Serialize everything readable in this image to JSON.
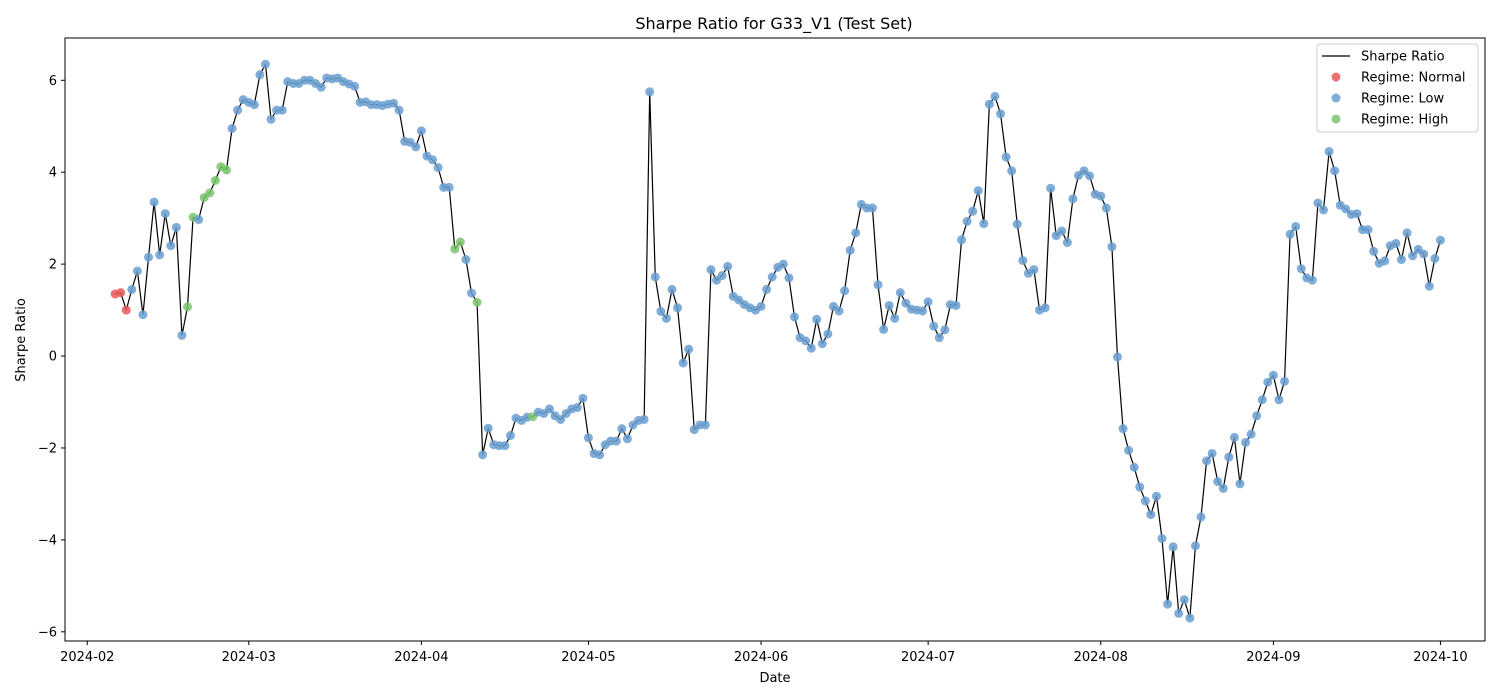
{
  "chart_data": {
    "type": "line",
    "title": "Sharpe Ratio  for G33_V1 (Test Set)",
    "xlabel": "Date",
    "ylabel": "Sharpe Ratio",
    "x_range": [
      "2024-01-28",
      "2024-10-09"
    ],
    "ylim": [
      -6.2,
      6.92
    ],
    "x_ticks": [
      "2024-02-01",
      "2024-03-01",
      "2024-04-01",
      "2024-05-01",
      "2024-06-01",
      "2024-07-01",
      "2024-08-01",
      "2024-09-01",
      "2024-10-01"
    ],
    "x_tick_labels": [
      "2024-02",
      "2024-03",
      "2024-04",
      "2024-05",
      "2024-06",
      "2024-07",
      "2024-08",
      "2024-09",
      "2024-10"
    ],
    "y_ticks": [
      -6,
      -4,
      -2,
      0,
      2,
      4,
      6
    ],
    "y_tick_labels": [
      "−6",
      "−4",
      "−2",
      "0",
      "2",
      "4",
      "6"
    ],
    "grid": false,
    "legend_position": "top-right",
    "line_series": {
      "name": "Sharpe Ratio",
      "color": "#000000"
    },
    "regimes": [
      {
        "name": "Regime: Normal",
        "color": "#e8595a"
      },
      {
        "name": "Regime: Low",
        "color": "#6a9fd0"
      },
      {
        "name": "Regime: High",
        "color": "#79c46c"
      }
    ],
    "regime_labels": [
      "N",
      "L",
      "H"
    ],
    "start_date": "2024-02-06",
    "values": [
      1.35,
      1.38,
      1.0,
      1.45,
      1.85,
      0.9,
      2.15,
      3.35,
      2.2,
      3.1,
      2.4,
      2.8,
      0.45,
      1.07,
      3.02,
      2.97,
      3.45,
      3.55,
      3.82,
      4.12,
      4.05,
      4.95,
      5.35,
      5.58,
      5.52,
      5.47,
      6.12,
      6.35,
      5.15,
      5.35,
      5.35,
      5.97,
      5.93,
      5.93,
      6.0,
      6.0,
      5.93,
      5.85,
      6.05,
      6.03,
      6.05,
      5.97,
      5.92,
      5.87,
      5.52,
      5.53,
      5.47,
      5.47,
      5.45,
      5.48,
      5.5,
      5.35,
      4.67,
      4.65,
      4.55,
      4.9,
      4.35,
      4.27,
      4.1,
      3.67,
      3.67,
      2.33,
      2.48,
      2.1,
      1.37,
      1.17,
      -2.15,
      -1.57,
      -1.93,
      -1.95,
      -1.95,
      -1.73,
      -1.35,
      -1.4,
      -1.33,
      -1.32,
      -1.22,
      -1.25,
      -1.15,
      -1.3,
      -1.38,
      -1.25,
      -1.15,
      -1.12,
      -0.92,
      -1.78,
      -2.12,
      -2.15,
      -1.93,
      -1.85,
      -1.85,
      -1.58,
      -1.8,
      -1.5,
      -1.4,
      -1.38,
      5.75,
      1.72,
      0.97,
      0.82,
      1.45,
      1.05,
      -0.15,
      0.15,
      -1.6,
      -1.5,
      -1.5,
      1.88,
      1.65,
      1.75,
      1.95,
      1.3,
      1.22,
      1.12,
      1.05,
      1.0,
      1.08,
      1.45,
      1.72,
      1.93,
      2.0,
      1.7,
      0.85,
      0.4,
      0.33,
      0.17,
      0.8,
      0.27,
      0.48,
      1.08,
      0.98,
      1.42,
      2.3,
      2.68,
      3.3,
      3.22,
      3.22,
      1.55,
      0.58,
      1.1,
      0.82,
      1.38,
      1.15,
      1.02,
      1.0,
      0.98,
      1.18,
      0.65,
      0.4,
      0.57,
      1.12,
      1.1,
      2.53,
      2.93,
      3.15,
      3.6,
      2.88,
      5.48,
      5.65,
      5.27,
      4.33,
      4.03,
      2.87,
      2.08,
      1.8,
      1.88,
      1.0,
      1.05,
      3.65,
      2.62,
      2.72,
      2.47,
      3.42,
      3.93,
      4.03,
      3.92,
      3.52,
      3.48,
      3.22,
      2.38,
      -0.02,
      -1.58,
      -2.05,
      -2.42,
      -2.85,
      -3.15,
      -3.45,
      -3.05,
      -3.97,
      -5.4,
      -4.15,
      -5.6,
      -5.3,
      -5.7,
      -4.13,
      -3.5,
      -2.28,
      -2.12,
      -2.73,
      -2.88,
      -2.2,
      -1.77,
      -2.78,
      -1.88,
      -1.7,
      -1.3,
      -0.95,
      -0.57,
      -0.42,
      -0.95,
      -0.55,
      2.65,
      2.82,
      1.9,
      1.7,
      1.65,
      3.33,
      3.18,
      4.45,
      4.03,
      3.28,
      3.2,
      3.08,
      3.1,
      2.75,
      2.75,
      2.28,
      2.02,
      2.07,
      2.4,
      2.45,
      2.1,
      2.68,
      2.18,
      2.32,
      2.22,
      1.52,
      2.12,
      2.52
    ],
    "regime_sequence": "NNNLLLLLLLLLLHHLHHHHHLLLLLLLLLLLLLLLLLLLLLLLLLLLLLLLLLLLLLLLLHHLLHLLLLLLLLLHLLLLLLLLLLLLLLLLLLLLLLLLLLLLLLLLLLLLLLLLLLLLLLLLLLLLLLLLLLLLLLLLLLLLLLLLLLLLLLLLLLLLLLLLLLLLLLLLLLLLLLLLLLLLLLLLLLLLLLLLLLLLLLLLLLLLLLLLLLLLLLLLLLLLLLLLLLLLLLL"
  }
}
